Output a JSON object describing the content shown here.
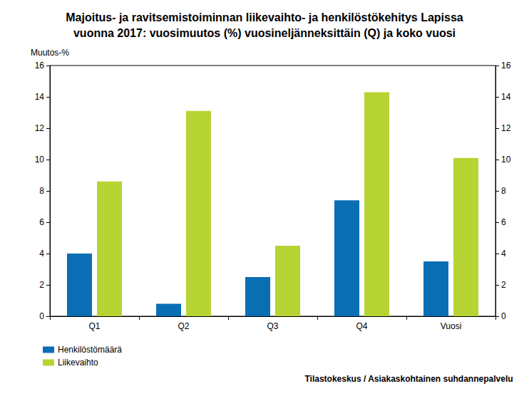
{
  "chart_data": {
    "type": "bar",
    "title": "Majoitus- ja ravitsemistoiminnan liikevaihto- ja henkilöstökehitys Lapissa\nvuonna 2017: vuosimuutos (%) vuosineljänneksittäin (Q) ja koko vuosi",
    "y_label": "Muutos-%",
    "annotations": [
      "Tilastokeskus / Asiakaskohtainen suhdannepalvelu"
    ],
    "categories": [
      "Q1",
      "Q2",
      "Q3",
      "Q4",
      "Vuosi"
    ],
    "series": [
      {
        "name": "Henkilöstömäärä",
        "color": "#0a6eb4",
        "values": [
          4.0,
          0.8,
          2.5,
          7.4,
          3.5
        ]
      },
      {
        "name": "Liikevaihto",
        "color": "#b6d433",
        "values": [
          8.6,
          13.1,
          4.5,
          14.3,
          10.1
        ]
      }
    ],
    "ylim": [
      0,
      16
    ],
    "yticks": [
      0,
      2,
      4,
      6,
      8,
      10,
      12,
      14,
      16
    ],
    "y2lim": [
      0,
      16
    ],
    "y2ticks": [
      0,
      2,
      4,
      6,
      8,
      10,
      12,
      14,
      16
    ],
    "grid": false,
    "legend": "bottom-left"
  }
}
